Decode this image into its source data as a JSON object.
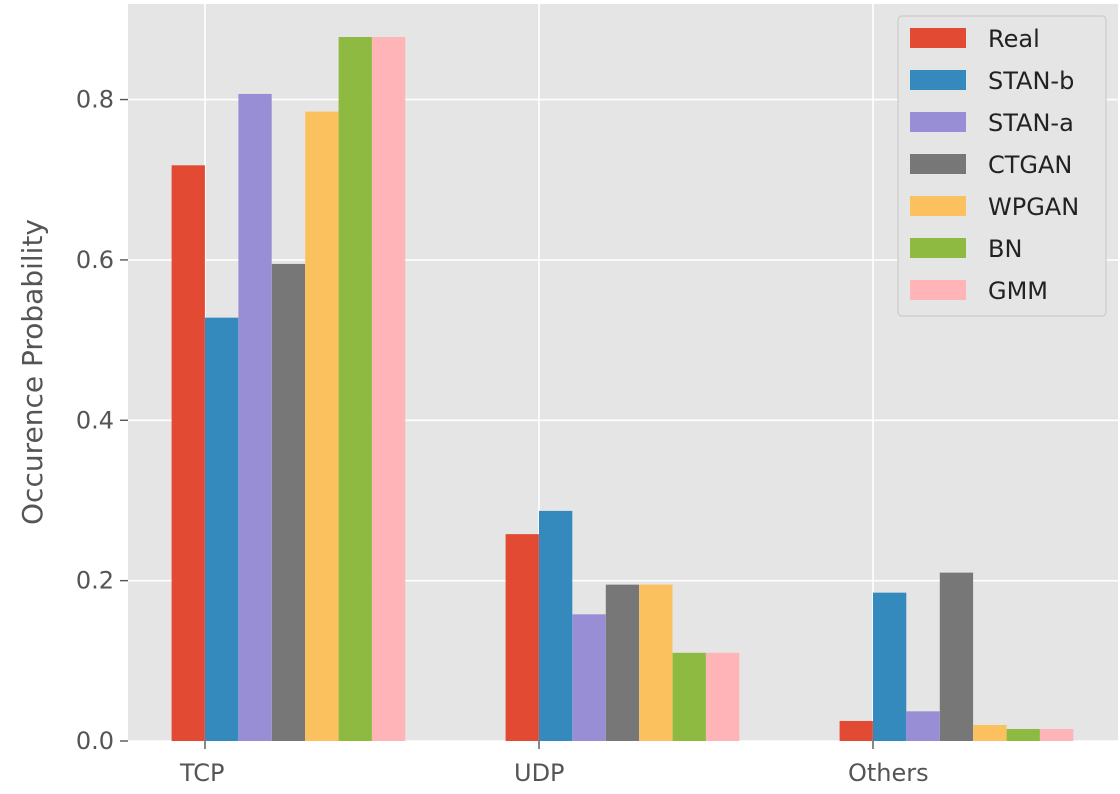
{
  "chart_data": {
    "type": "bar",
    "title": "",
    "xlabel": "",
    "ylabel": "Occurence Probability",
    "categories": [
      "TCP",
      "UDP",
      "Others"
    ],
    "ylim": [
      0,
      0.9
    ],
    "yticks": [
      0.0,
      0.2,
      0.4,
      0.6,
      0.8
    ],
    "ytick_labels": [
      "0.0",
      "0.2",
      "0.4",
      "0.6",
      "0.8"
    ],
    "grid": true,
    "legend_position": "top-right",
    "series": [
      {
        "name": "Real",
        "color": "#e24a33",
        "values": [
          0.718,
          0.258,
          0.025
        ]
      },
      {
        "name": "STAN-b",
        "color": "#348abd",
        "values": [
          0.528,
          0.287,
          0.185
        ]
      },
      {
        "name": "STAN-a",
        "color": "#988ed5",
        "values": [
          0.807,
          0.158,
          0.037
        ]
      },
      {
        "name": "CTGAN",
        "color": "#777777",
        "values": [
          0.595,
          0.195,
          0.21
        ]
      },
      {
        "name": "WPGAN",
        "color": "#fbc15e",
        "values": [
          0.785,
          0.195,
          0.02
        ]
      },
      {
        "name": "BN",
        "color": "#8eba42",
        "values": [
          0.878,
          0.11,
          0.015
        ]
      },
      {
        "name": "GMM",
        "color": "#ffb5b8",
        "values": [
          0.878,
          0.11,
          0.015
        ]
      }
    ]
  }
}
